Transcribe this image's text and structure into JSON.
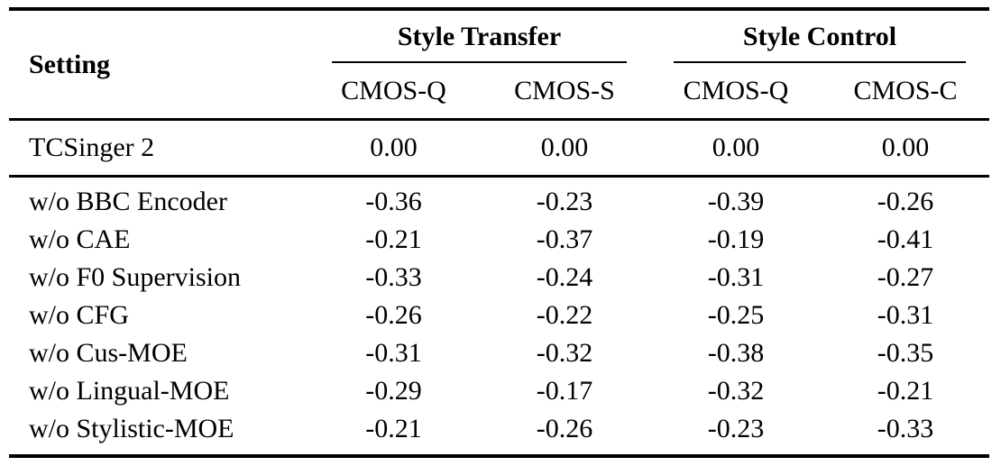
{
  "table": {
    "setting_header": "Setting",
    "groups": [
      {
        "label": "Style Transfer",
        "subcolumns": [
          "CMOS-Q",
          "CMOS-S"
        ]
      },
      {
        "label": "Style Control",
        "subcolumns": [
          "CMOS-Q",
          "CMOS-C"
        ]
      }
    ],
    "rows": [
      {
        "setting": "TCSinger 2",
        "values": [
          "0.00",
          "0.00",
          "0.00",
          "0.00"
        ]
      },
      {
        "setting": "w/o BBC Encoder",
        "values": [
          "-0.36",
          "-0.23",
          "-0.39",
          "-0.26"
        ]
      },
      {
        "setting": "w/o CAE",
        "values": [
          "-0.21",
          "-0.37",
          "-0.19",
          "-0.41"
        ]
      },
      {
        "setting": "w/o F0 Supervision",
        "values": [
          "-0.33",
          "-0.24",
          "-0.31",
          "-0.27"
        ]
      },
      {
        "setting": "w/o CFG",
        "values": [
          "-0.26",
          "-0.22",
          "-0.25",
          "-0.31"
        ]
      },
      {
        "setting": "w/o Cus-MOE",
        "values": [
          "-0.31",
          "-0.32",
          "-0.38",
          "-0.35"
        ]
      },
      {
        "setting": "w/o Lingual-MOE",
        "values": [
          "-0.29",
          "-0.17",
          "-0.32",
          "-0.21"
        ]
      },
      {
        "setting": "w/o Stylistic-MOE",
        "values": [
          "-0.21",
          "-0.26",
          "-0.23",
          "-0.33"
        ]
      }
    ],
    "colors": {
      "text": "#000000",
      "background": "#ffffff",
      "rule": "#000000"
    }
  }
}
